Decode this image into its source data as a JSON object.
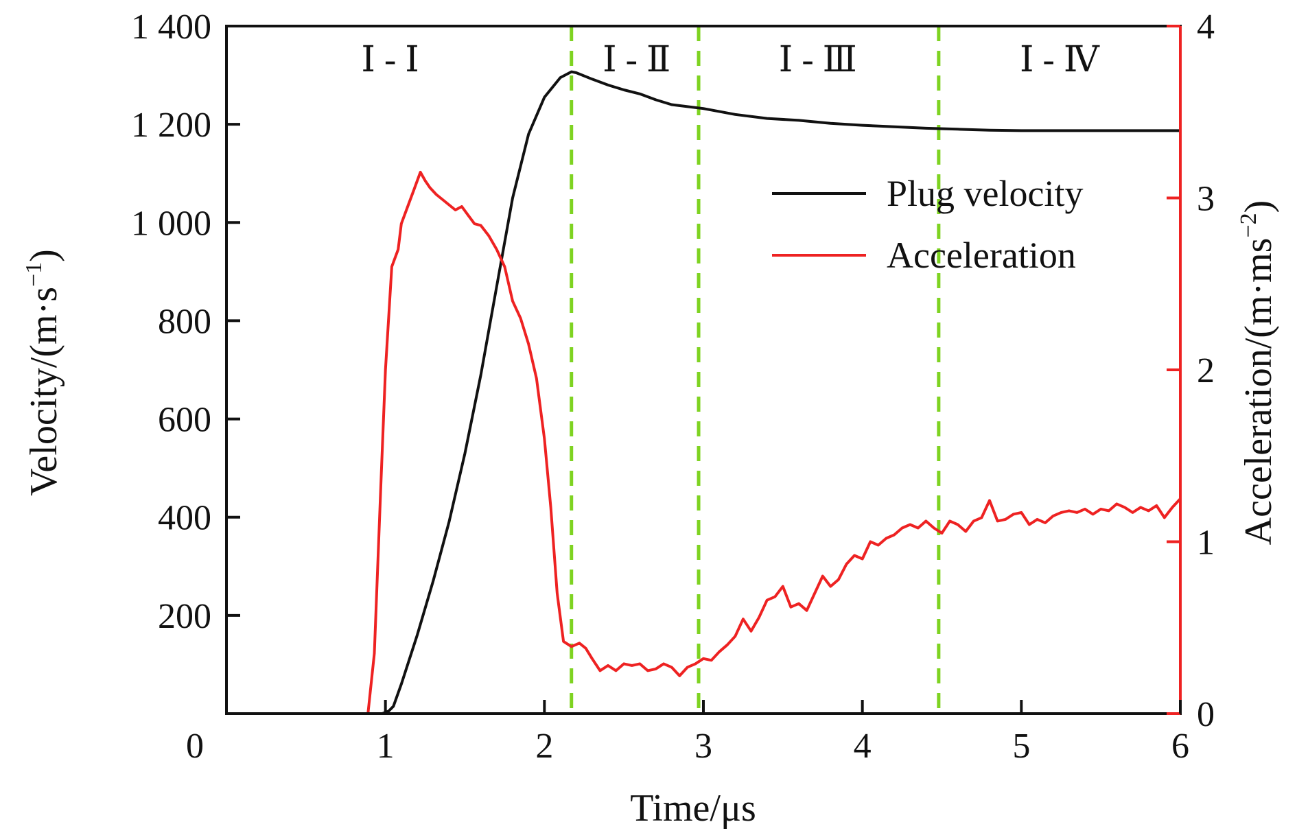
{
  "chart_data": {
    "type": "line",
    "xlabel": "Time/μs",
    "ylabel": "Velocity/(m·s",
    "ylabel_sup": "−1",
    "ylabel_close": ")",
    "y2label": "Acceleration/(m·ms",
    "y2label_sup": "−2",
    "y2label_close": ")",
    "xlim": [
      0,
      6
    ],
    "ylim": [
      0,
      1400
    ],
    "y2lim": [
      0,
      4
    ],
    "x_ticks": [
      0,
      1,
      2,
      3,
      4,
      5,
      6
    ],
    "x_tick_labels": [
      "0",
      "1",
      "2",
      "3",
      "4",
      "5",
      "6"
    ],
    "y_ticks": [
      200,
      400,
      600,
      800,
      1000,
      1200,
      1400
    ],
    "y_tick_labels": [
      "200",
      "400",
      "600",
      "800",
      "1 000",
      "1 200",
      "1 400"
    ],
    "y2_ticks": [
      0,
      1,
      2,
      3,
      4
    ],
    "y2_tick_labels": [
      "0",
      "1",
      "2",
      "3",
      "4"
    ],
    "grid": false,
    "legend_position": "upper-right",
    "colors": {
      "velocity": "#111111",
      "acceleration": "#ee2222",
      "phase_divider": "#7ed321",
      "right_axis": "#ee2222"
    },
    "phase_dividers": [
      2.17,
      2.97,
      4.48
    ],
    "phases": [
      {
        "label": "Ⅰ - Ⅰ",
        "x_center": 1.03
      },
      {
        "label": "Ⅰ - Ⅱ",
        "x_center": 2.58
      },
      {
        "label": "Ⅰ - Ⅲ",
        "x_center": 3.72
      },
      {
        "label": "Ⅰ - Ⅳ",
        "x_center": 5.24
      }
    ],
    "series": [
      {
        "name": "Plug velocity",
        "axis": "left",
        "color": "#111111",
        "x": [
          0,
          0.5,
          0.98,
          1.02,
          1.05,
          1.1,
          1.2,
          1.3,
          1.4,
          1.5,
          1.6,
          1.7,
          1.8,
          1.9,
          2.0,
          2.1,
          2.17,
          2.2,
          2.3,
          2.4,
          2.5,
          2.6,
          2.7,
          2.8,
          3.0,
          3.2,
          3.4,
          3.6,
          3.8,
          4.0,
          4.2,
          4.4,
          4.6,
          4.8,
          5.0,
          5.5,
          6.0
        ],
        "y": [
          0,
          0,
          0,
          5,
          15,
          60,
          160,
          270,
          390,
          530,
          690,
          870,
          1050,
          1180,
          1255,
          1295,
          1307,
          1305,
          1292,
          1280,
          1270,
          1262,
          1250,
          1240,
          1232,
          1220,
          1212,
          1208,
          1202,
          1198,
          1195,
          1192,
          1190,
          1188,
          1187,
          1187,
          1187
        ]
      },
      {
        "name": "Acceleration",
        "axis": "right",
        "color": "#ee2222",
        "x": [
          0,
          0.5,
          0.89,
          0.93,
          0.97,
          1.0,
          1.04,
          1.08,
          1.1,
          1.14,
          1.18,
          1.22,
          1.25,
          1.28,
          1.32,
          1.36,
          1.4,
          1.44,
          1.48,
          1.52,
          1.56,
          1.6,
          1.65,
          1.7,
          1.75,
          1.8,
          1.85,
          1.9,
          1.95,
          2.0,
          2.04,
          2.08,
          2.12,
          2.17,
          2.22,
          2.26,
          2.3,
          2.35,
          2.4,
          2.45,
          2.5,
          2.55,
          2.6,
          2.65,
          2.7,
          2.75,
          2.8,
          2.85,
          2.9,
          2.95,
          3.0,
          3.05,
          3.1,
          3.15,
          3.2,
          3.25,
          3.3,
          3.35,
          3.4,
          3.45,
          3.5,
          3.55,
          3.6,
          3.65,
          3.7,
          3.75,
          3.8,
          3.85,
          3.9,
          3.95,
          4.0,
          4.05,
          4.1,
          4.15,
          4.2,
          4.25,
          4.3,
          4.35,
          4.4,
          4.45,
          4.5,
          4.55,
          4.6,
          4.65,
          4.7,
          4.75,
          4.8,
          4.85,
          4.9,
          4.95,
          5.0,
          5.05,
          5.1,
          5.15,
          5.2,
          5.25,
          5.3,
          5.35,
          5.4,
          5.45,
          5.5,
          5.55,
          5.6,
          5.65,
          5.7,
          5.75,
          5.8,
          5.85,
          5.9,
          5.95,
          6.0
        ],
        "y": [
          0,
          0,
          0,
          0.35,
          1.3,
          2.0,
          2.6,
          2.7,
          2.85,
          2.95,
          3.05,
          3.15,
          3.1,
          3.06,
          3.02,
          2.99,
          2.96,
          2.93,
          2.95,
          2.9,
          2.85,
          2.84,
          2.78,
          2.7,
          2.6,
          2.4,
          2.3,
          2.15,
          1.95,
          1.6,
          1.2,
          0.7,
          0.42,
          0.39,
          0.41,
          0.38,
          0.32,
          0.25,
          0.28,
          0.25,
          0.29,
          0.28,
          0.29,
          0.25,
          0.26,
          0.29,
          0.27,
          0.22,
          0.27,
          0.29,
          0.32,
          0.31,
          0.36,
          0.4,
          0.45,
          0.55,
          0.48,
          0.56,
          0.66,
          0.68,
          0.74,
          0.62,
          0.64,
          0.6,
          0.7,
          0.8,
          0.74,
          0.78,
          0.87,
          0.92,
          0.9,
          1.0,
          0.98,
          1.02,
          1.04,
          1.08,
          1.1,
          1.08,
          1.12,
          1.08,
          1.05,
          1.12,
          1.1,
          1.06,
          1.12,
          1.14,
          1.24,
          1.12,
          1.13,
          1.16,
          1.17,
          1.1,
          1.13,
          1.11,
          1.15,
          1.17,
          1.18,
          1.17,
          1.19,
          1.16,
          1.19,
          1.18,
          1.22,
          1.2,
          1.17,
          1.2,
          1.18,
          1.21,
          1.14,
          1.2,
          1.25
        ]
      }
    ]
  }
}
